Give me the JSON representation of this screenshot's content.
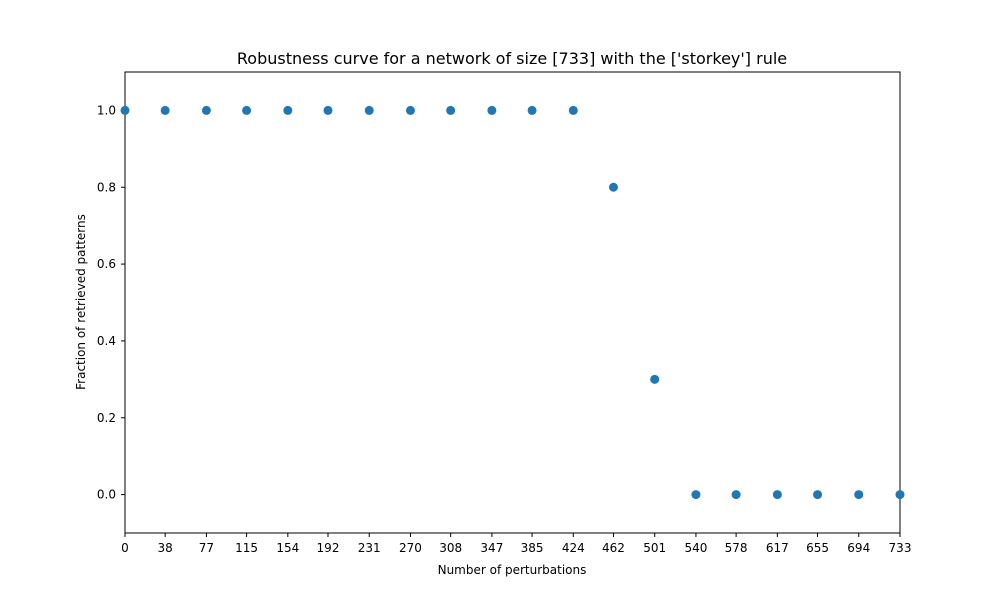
{
  "chart_data": {
    "type": "scatter",
    "title": "Robustness curve for a network of size [733] with the ['storkey'] rule",
    "xlabel": "Number of perturbations",
    "ylabel": "Fraction of retrieved patterns",
    "xlim": [
      0,
      733
    ],
    "ylim": [
      -0.1,
      1.1
    ],
    "x_ticks": [
      0,
      38,
      77,
      115,
      154,
      192,
      231,
      270,
      308,
      347,
      385,
      424,
      462,
      501,
      540,
      578,
      617,
      655,
      694,
      733
    ],
    "y_ticks": [
      0.0,
      0.2,
      0.4,
      0.6,
      0.8,
      1.0
    ],
    "y_tick_labels": [
      "0.0",
      "0.2",
      "0.4",
      "0.6",
      "0.8",
      "1.0"
    ],
    "grid": false,
    "series": [
      {
        "color": "#1f77b4",
        "x": [
          0,
          38,
          77,
          115,
          154,
          192,
          231,
          270,
          308,
          347,
          385,
          424,
          462,
          501,
          540,
          578,
          617,
          655,
          694,
          733
        ],
        "y": [
          1.0,
          1.0,
          1.0,
          1.0,
          1.0,
          1.0,
          1.0,
          1.0,
          1.0,
          1.0,
          1.0,
          1.0,
          0.8,
          0.3,
          0.0,
          0.0,
          0.0,
          0.0,
          0.0,
          0.0
        ]
      }
    ]
  }
}
